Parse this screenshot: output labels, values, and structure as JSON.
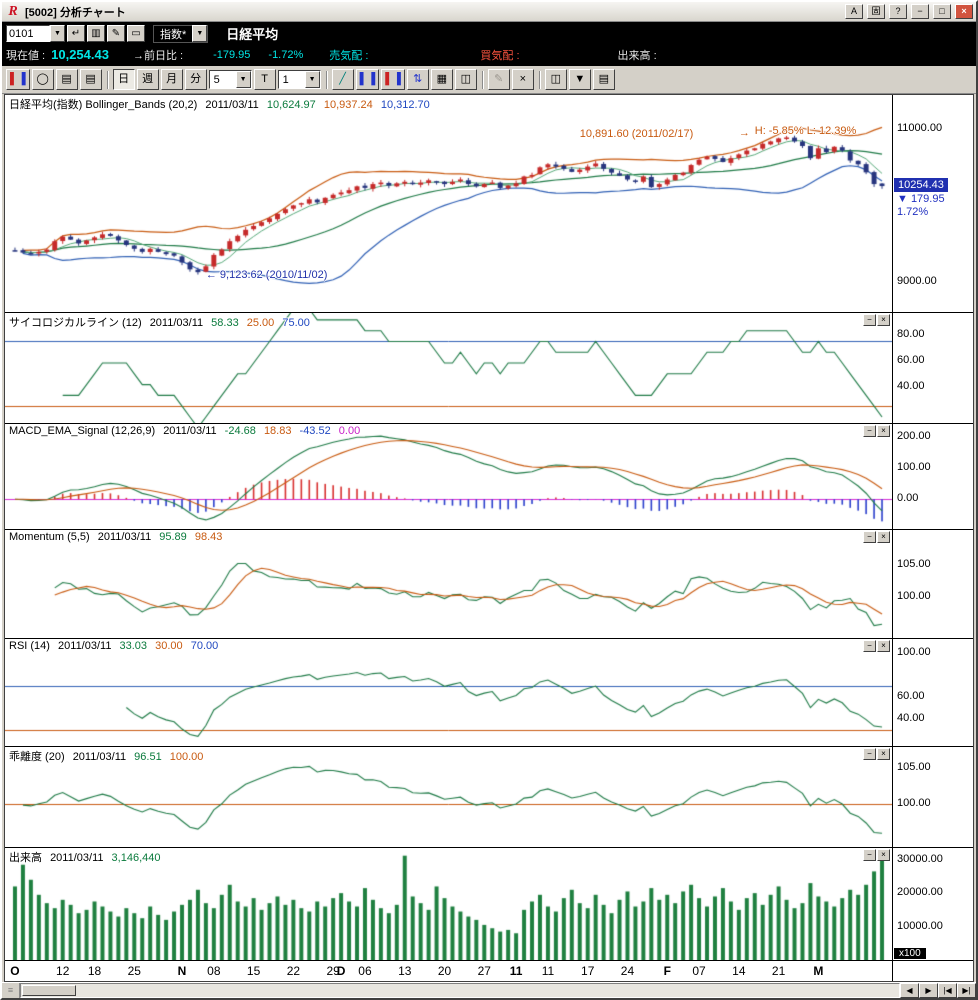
{
  "window": {
    "logo": "R",
    "title": "[5002] 分析チャート",
    "controls": {
      "font": "A",
      "pin": "固",
      "help": "?",
      "min": "−",
      "max": "□",
      "close": "×"
    }
  },
  "quote": {
    "code": "0101",
    "type_selector": "指数*",
    "name": "日経平均",
    "current_label": "現在値 :",
    "current_value": "10,254.43",
    "prev_label": "→前日比 :",
    "change_value": "-179.95",
    "change_pct": "-1.72%",
    "ask_label": "売気配 :",
    "bid_label": "買気配 :",
    "volume_label": "出来高 :"
  },
  "qicons": {
    "enter": "↵",
    "list": "▥",
    "edit": "✎",
    "draw": "▭",
    "caret": "▼"
  },
  "toolbar": {
    "day": "日",
    "week": "週",
    "month": "月",
    "minute": "分",
    "minute_count": "5",
    "tick": "T",
    "tick_count": "1",
    "icons": {
      "bar_l": "▌",
      "bar_r": "▐",
      "zoom": "◯",
      "page": "▤",
      "line": "╱",
      "arrows": "⇅",
      "grid": "▦",
      "window": "◫",
      "pencil": "✎",
      "clear": "×",
      "caret": "▼"
    }
  },
  "panels": {
    "main": {
      "title": "日経平均(指数) Bollinger_Bands (20,2)",
      "date": "2011/03/11",
      "mid": "10,624.97",
      "upper": "10,937.24",
      "lower": "10,312.70",
      "annot_high": "10,891.60 (2011/02/17)",
      "annot_arrow": "→",
      "annot_hl": "H: -5.85%  L: 12.39%",
      "annot_low": "← 9,123.62 (2010/11/02)",
      "badge_price": "10254.43",
      "badge_change": "▼ 179.95",
      "badge_pct": "1.72%"
    },
    "psych": {
      "title": "サイコロジカルライン (12)",
      "date": "2011/03/11",
      "v1": "58.33",
      "v2": "25.00",
      "v3": "75.00"
    },
    "macd": {
      "title": "MACD_EMA_Signal (12,26,9)",
      "date": "2011/03/11",
      "v1": "-24.68",
      "v2": "18.83",
      "v3": "-43.52",
      "v4": "0.00"
    },
    "momentum": {
      "title": "Momentum (5,5)",
      "date": "2011/03/11",
      "v1": "95.89",
      "v2": "98.43"
    },
    "rsi": {
      "title": "RSI (14)",
      "date": "2011/03/11",
      "v1": "33.03",
      "v2": "30.00",
      "v3": "70.00"
    },
    "kairi": {
      "title": "乖離度 (20)",
      "date": "2011/03/11",
      "v1": "96.51",
      "v2": "100.00"
    },
    "volume": {
      "title": "出来高",
      "date": "2011/03/11",
      "v1": "3,146,440",
      "unit": "x100"
    }
  },
  "panel_controls": {
    "min": "−",
    "close": "×"
  },
  "scrollbar": {
    "buttons": [
      "◀",
      "▶",
      "|◀",
      "▶|"
    ]
  },
  "chart_data": {
    "type": "candlestick",
    "title": "日経平均(指数) Bollinger_Bands (20,2)",
    "closes": [
      9400,
      9380,
      9360,
      9390,
      9420,
      9530,
      9590,
      9550,
      9500,
      9540,
      9580,
      9620,
      9600,
      9540,
      9480,
      9430,
      9390,
      9430,
      9390,
      9360,
      9340,
      9250,
      9160,
      9123,
      9200,
      9350,
      9420,
      9530,
      9600,
      9680,
      9730,
      9780,
      9830,
      9890,
      9950,
      10000,
      10030,
      10080,
      10040,
      10100,
      10140,
      10170,
      10200,
      10250,
      10230,
      10280,
      10300,
      10260,
      10290,
      10310,
      10280,
      10300,
      10330,
      10310,
      10280,
      10310,
      10340,
      10280,
      10250,
      10280,
      10300,
      10230,
      10260,
      10290,
      10380,
      10400,
      10500,
      10540,
      10510,
      10480,
      10440,
      10470,
      10510,
      10550,
      10480,
      10430,
      10390,
      10340,
      10310,
      10380,
      10240,
      10280,
      10340,
      10400,
      10430,
      10530,
      10600,
      10640,
      10610,
      10570,
      10620,
      10670,
      10720,
      10750,
      10810,
      10840,
      10880,
      10892,
      10840,
      10780,
      10620,
      10750,
      10700,
      10770,
      10720,
      10590,
      10540,
      10434,
      10280,
      10254
    ],
    "volumes": [
      22000,
      28500,
      24000,
      19500,
      17000,
      15500,
      18000,
      16500,
      14000,
      15000,
      17500,
      16000,
      14500,
      13000,
      15500,
      14000,
      12500,
      16000,
      13500,
      12000,
      14500,
      16500,
      18000,
      21000,
      17000,
      15500,
      19500,
      22500,
      17500,
      16000,
      18500,
      15000,
      17000,
      19000,
      16500,
      18000,
      15500,
      14500,
      17500,
      16000,
      18500,
      20000,
      17500,
      16000,
      21500,
      18000,
      15500,
      14000,
      16500,
      31200,
      19000,
      17000,
      15000,
      22000,
      18500,
      16000,
      14500,
      13000,
      12000,
      10500,
      9500,
      8500,
      9000,
      8000,
      15000,
      17500,
      19500,
      16000,
      14500,
      18500,
      21000,
      17000,
      15500,
      19500,
      16500,
      14000,
      18000,
      20500,
      16000,
      17500,
      21500,
      18000,
      19500,
      17000,
      20500,
      22500,
      18500,
      16000,
      19000,
      21500,
      17500,
      15000,
      18500,
      20000,
      16500,
      19500,
      22000,
      18000,
      15500,
      17000,
      23000,
      19000,
      17500,
      16000,
      18500,
      21000,
      19500,
      22500,
      26500,
      31464
    ],
    "x_ticks": [
      {
        "label": "O",
        "i": 0,
        "m": true
      },
      {
        "label": "12",
        "i": 6
      },
      {
        "label": "18",
        "i": 10
      },
      {
        "label": "25",
        "i": 15
      },
      {
        "label": "N",
        "i": 21,
        "m": true
      },
      {
        "label": "08",
        "i": 25
      },
      {
        "label": "15",
        "i": 30
      },
      {
        "label": "22",
        "i": 35
      },
      {
        "label": "29",
        "i": 40
      },
      {
        "label": "D",
        "i": 41,
        "m": true
      },
      {
        "label": "06",
        "i": 44
      },
      {
        "label": "13",
        "i": 49
      },
      {
        "label": "20",
        "i": 54
      },
      {
        "label": "27",
        "i": 59
      },
      {
        "label": "11",
        "i": 63,
        "m": true
      },
      {
        "label": "11",
        "i": 67
      },
      {
        "label": "17",
        "i": 72
      },
      {
        "label": "24",
        "i": 77
      },
      {
        "label": "F",
        "i": 82,
        "m": true
      },
      {
        "label": "07",
        "i": 86
      },
      {
        "label": "14",
        "i": 91
      },
      {
        "label": "21",
        "i": 96
      },
      {
        "label": "M",
        "i": 101,
        "m": true
      }
    ],
    "indicator_params": {
      "bollinger": [
        20,
        2
      ],
      "psych": 12,
      "macd": [
        12,
        26,
        9
      ],
      "momentum": [
        5,
        5
      ],
      "rsi": 14,
      "kairi": 20
    },
    "panes": {
      "main": {
        "ylim": [
          8600,
          11450
        ],
        "axis": [
          {
            "t": "11000.00",
            "v": 11000
          },
          {
            "t": "9000.00",
            "v": 9000
          }
        ],
        "ann": {
          "low": {
            "i": 24,
            "v": 9085
          },
          "high": {
            "i": 71,
            "v": 10935
          },
          "arrow": {
            "i": 91,
            "v": 10945
          },
          "hl": {
            "i": 93,
            "v": 10975
          },
          "badge": 10254.43
        }
      },
      "psych": {
        "ylim": [
          12,
          97
        ],
        "axis": [
          {
            "t": "80.00",
            "v": 80
          },
          {
            "t": "60.00",
            "v": 60
          },
          {
            "t": "40.00",
            "v": 40
          }
        ],
        "refs": [
          {
            "v": 75,
            "c": "blue"
          },
          {
            "v": 25,
            "c": "orange"
          }
        ]
      },
      "macd": {
        "ylim": [
          -95,
          240
        ],
        "axis": [
          {
            "t": "200.00",
            "v": 200
          },
          {
            "t": "100.00",
            "v": 100
          },
          {
            "t": "0.00",
            "v": 0
          }
        ],
        "refs": [
          {
            "v": 0,
            "c": "magenta"
          }
        ]
      },
      "momentum": {
        "ylim": [
          93.5,
          110.5
        ],
        "axis": [
          {
            "t": "105.00",
            "v": 105
          },
          {
            "t": "100.00",
            "v": 100
          }
        ]
      },
      "rsi": {
        "ylim": [
          15,
          113
        ],
        "axis": [
          {
            "t": "100.00",
            "v": 100
          },
          {
            "t": "60.00",
            "v": 60
          },
          {
            "t": "40.00",
            "v": 40
          }
        ],
        "refs": [
          {
            "v": 70,
            "c": "blue"
          },
          {
            "v": 30,
            "c": "orange"
          }
        ]
      },
      "kairi": {
        "ylim": [
          94.2,
          107.8
        ],
        "axis": [
          {
            "t": "105.00",
            "v": 105
          },
          {
            "t": "100.00",
            "v": 100
          }
        ],
        "refs": [
          {
            "v": 100,
            "c": "orange"
          }
        ]
      },
      "volume": {
        "ylim": [
          0,
          33500
        ],
        "axis": [
          {
            "t": "30000.00",
            "v": 30000
          },
          {
            "t": "20000.00",
            "v": 20000
          },
          {
            "t": "10000.00",
            "v": 10000
          }
        ]
      }
    },
    "colors": {
      "up": "#c62a2a",
      "down": "#27357e",
      "green": "#1e7a46",
      "green2": "#55a878",
      "orange": "#c85a10",
      "blue": "#2f5fb4",
      "magenta": "#d428d4",
      "hist_pos": "#d83030",
      "hist_neg": "#2a3ecc",
      "volume": "#1f8040"
    }
  }
}
